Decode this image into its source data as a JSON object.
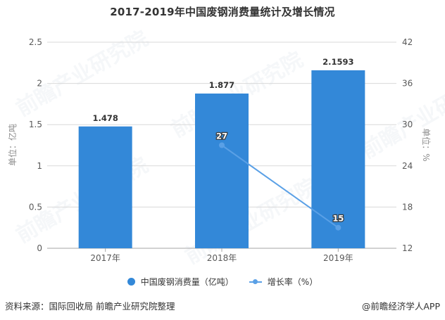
{
  "title": "2017-2019年中国废钢消费量统计及增长情况",
  "colors": {
    "bar": "#3388d8",
    "line": "#5aa0e6",
    "grid": "#d9d9d9"
  },
  "chart_data": {
    "type": "bar+line",
    "title": "2017-2019年中国废钢消费量统计及增长情况",
    "categories": [
      "2017年",
      "2018年",
      "2019年"
    ],
    "series": [
      {
        "name": "中国废钢消费量（亿吨）",
        "type": "bar",
        "axis": "left",
        "values": [
          1.478,
          1.877,
          2.1593
        ],
        "labels": [
          "1.478",
          "1.877",
          "2.1593"
        ]
      },
      {
        "name": "增长率（%）",
        "type": "line",
        "axis": "right",
        "values": [
          null,
          27,
          15
        ],
        "labels": [
          "",
          "27",
          "15"
        ]
      }
    ],
    "ylabel": "单位：亿吨",
    "y2label": "单位：%",
    "ylim": [
      0,
      2.5
    ],
    "y2lim": [
      12,
      42
    ],
    "yticks": [
      "0",
      "0.5",
      "1",
      "1.5",
      "2",
      "2.5"
    ],
    "y2ticks": [
      "12",
      "18",
      "24",
      "30",
      "36",
      "42"
    ],
    "grid": true,
    "legend_position": "bottom"
  },
  "legend": {
    "bar_label": "中国废钢消费量（亿吨）",
    "line_label": "增长率（%）"
  },
  "footer": {
    "source": "资料来源：国际回收局 前瞻产业研究院整理",
    "credit": "@前瞻经济学人APP"
  },
  "watermark": "前瞻产业研究院"
}
